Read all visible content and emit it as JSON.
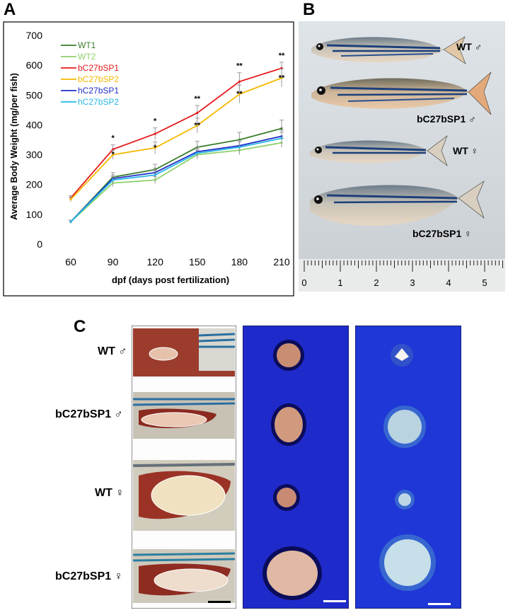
{
  "panels": {
    "a": "A",
    "b": "B",
    "c": "C"
  },
  "chart_data": {
    "type": "line",
    "title": "",
    "xlabel": "dpf (days post fertilization)",
    "ylabel": "Average Body Weight  (mg/per fish)",
    "x": [
      60,
      90,
      120,
      150,
      180,
      210
    ],
    "xticks": [
      "60",
      "90",
      "120",
      "150",
      "180",
      "210"
    ],
    "ylim": [
      0,
      700
    ],
    "yticks": [
      "0",
      "100",
      "200",
      "300",
      "400",
      "500",
      "600",
      "700"
    ],
    "legend_position": "top-left",
    "series": [
      {
        "name": "WT1",
        "color": "#3a7d2c",
        "values": [
          75,
          225,
          250,
          325,
          350,
          388
        ],
        "errors": [
          5,
          15,
          18,
          20,
          25,
          28
        ]
      },
      {
        "name": "WT2",
        "color": "#8fd16a",
        "values": [
          75,
          205,
          215,
          300,
          315,
          340
        ],
        "errors": [
          5,
          12,
          12,
          15,
          15,
          15
        ]
      },
      {
        "name": "bC27bSP1",
        "color": "#e41a1c",
        "values": [
          155,
          318,
          370,
          440,
          545,
          590
        ],
        "errors": [
          8,
          15,
          20,
          25,
          30,
          20
        ]
      },
      {
        "name": "bC27bSP2",
        "color": "#f5b800",
        "values": [
          150,
          300,
          323,
          398,
          503,
          557
        ],
        "errors": [
          8,
          15,
          20,
          25,
          30,
          30
        ]
      },
      {
        "name": "hC27bSP1",
        "color": "#1f2fc8",
        "values": [
          75,
          220,
          240,
          310,
          330,
          362
        ],
        "errors": [
          5,
          12,
          15,
          15,
          18,
          20
        ]
      },
      {
        "name": "hC27bSP2",
        "color": "#27b6e6",
        "values": [
          75,
          215,
          232,
          305,
          325,
          355
        ],
        "errors": [
          5,
          12,
          15,
          15,
          18,
          20
        ]
      }
    ],
    "significance": [
      {
        "x": 90,
        "label": "*"
      },
      {
        "x": 120,
        "label": "*"
      },
      {
        "x": 150,
        "label": "**"
      },
      {
        "x": 180,
        "label": "**"
      },
      {
        "x": 210,
        "label": "**"
      }
    ]
  },
  "panel_b": {
    "fish_labels": [
      "WT ♂",
      "bC27bSP1 ♂",
      "WT ♀",
      "bC27bSP1 ♀"
    ],
    "ruler_numbers": [
      "0",
      "1",
      "2",
      "3",
      "4",
      "5"
    ]
  },
  "panel_c": {
    "row_labels": [
      "WT ♂",
      "bC27bSP1 ♂",
      "WT ♀",
      "bC27bSP1 ♀"
    ]
  }
}
